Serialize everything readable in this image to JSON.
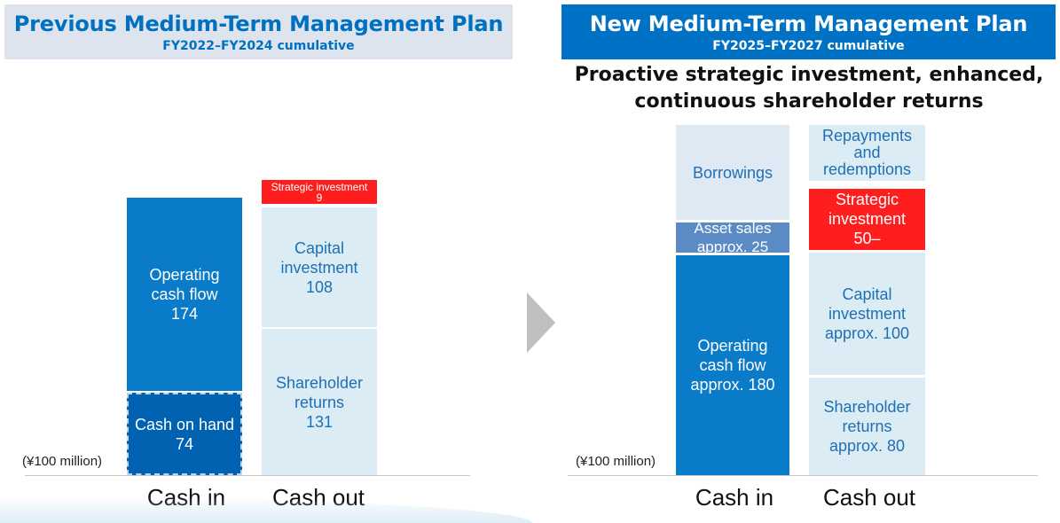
{
  "previous_plan": {
    "title": "Previous Medium-Term Management Plan",
    "subtitle": "FY2022–FY2024 cumulative"
  },
  "new_plan": {
    "title": "New Medium-Term Management Plan",
    "subtitle": "FY2025–FY2027 cumulative",
    "tagline": "Proactive strategic investment, enhanced,\ncontinuous shareholder returns"
  },
  "colors": {
    "operating_cash_flow": "#0a7bc9",
    "cash_on_hand": "#0062b1",
    "borrowings_new": "#dfe9f3",
    "asset_sales": "#5b8bc5",
    "light_cash_out": "#dcecf4",
    "strategic_investment": "#ff1e1e",
    "text_blue": "#1f6fb5"
  },
  "chart_data": [
    {
      "type": "bar",
      "stacked": true,
      "unit": "(¥100 million)",
      "categories": [
        "Cash in",
        "Cash out"
      ],
      "series": [
        {
          "name": "Cash on hand",
          "category": "Cash in",
          "value": 74,
          "label": "Cash on hand\n74"
        },
        {
          "name": "Operating cash flow",
          "category": "Cash in",
          "value": 174,
          "label": "Operating\ncash flow\n174"
        },
        {
          "name": "Shareholder returns",
          "category": "Cash out",
          "value": 131,
          "label": "Shareholder\nreturns\n131"
        },
        {
          "name": "Capital investment",
          "category": "Cash out",
          "value": 108,
          "label": "Capital\ninvestment\n108"
        },
        {
          "name": "Strategic investment",
          "category": "Cash out",
          "value": 9,
          "label": "Strategic investment\n9"
        }
      ]
    },
    {
      "type": "bar",
      "stacked": true,
      "unit": "(¥100 million)",
      "categories": [
        "Cash in",
        "Cash out"
      ],
      "series": [
        {
          "name": "Operating cash flow",
          "category": "Cash in",
          "value": 180,
          "label": "Operating\ncash flow\napprox. 180"
        },
        {
          "name": "Asset sales",
          "category": "Cash in",
          "value": 25,
          "label": "Asset sales\napprox. 25"
        },
        {
          "name": "Borrowings",
          "category": "Cash in",
          "value": null,
          "label": "Borrowings"
        },
        {
          "name": "Shareholder returns",
          "category": "Cash out",
          "value": 80,
          "label": "Shareholder\nreturns\napprox. 80"
        },
        {
          "name": "Capital investment",
          "category": "Cash out",
          "value": 100,
          "label": "Capital\ninvestment\napprox. 100"
        },
        {
          "name": "Strategic investment",
          "category": "Cash out",
          "value": 50,
          "label": "Strategic\ninvestment\n50–"
        },
        {
          "name": "Repayments and redemptions",
          "category": "Cash out",
          "value": null,
          "label": "Repayments\nand\nredemptions"
        }
      ]
    }
  ]
}
